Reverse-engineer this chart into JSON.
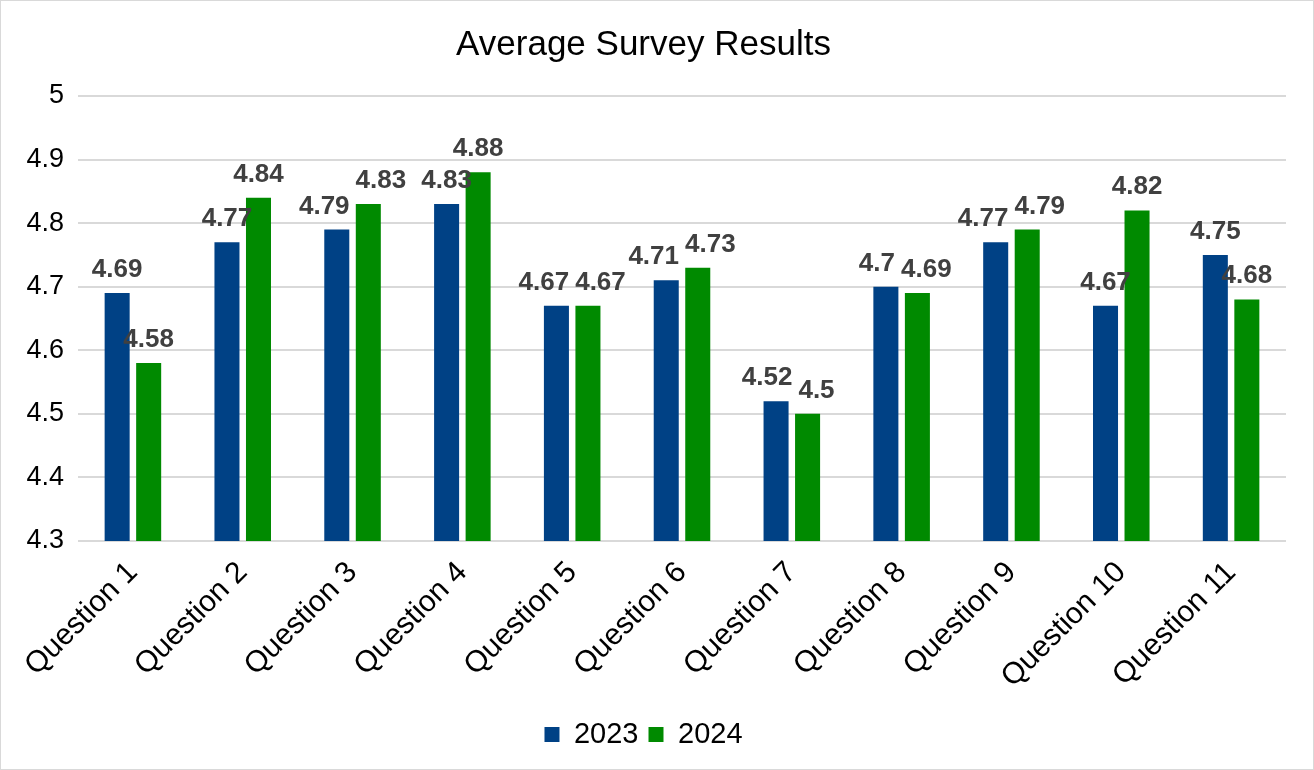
{
  "chart_data": {
    "type": "bar",
    "title": "Average Survey Results",
    "categories": [
      "Question 1",
      "Question 2",
      "Question 3",
      "Question 4",
      "Question 5",
      "Question 6",
      "Question 7",
      "Question 8",
      "Question 9",
      "Question 10",
      "Question 11"
    ],
    "series": [
      {
        "name": "2023",
        "color": "#004185",
        "values": [
          4.69,
          4.77,
          4.79,
          4.83,
          4.67,
          4.71,
          4.52,
          4.7,
          4.77,
          4.67,
          4.75
        ]
      },
      {
        "name": "2024",
        "color": "#008a00",
        "values": [
          4.58,
          4.84,
          4.83,
          4.88,
          4.67,
          4.73,
          4.5,
          4.69,
          4.79,
          4.82,
          4.68
        ]
      }
    ],
    "ylim": [
      4.3,
      5
    ],
    "yticks": [
      4.3,
      4.4,
      4.5,
      4.6,
      4.7,
      4.8,
      4.9,
      5
    ],
    "grid": "y",
    "legend": "bottom",
    "data_labels": true
  }
}
